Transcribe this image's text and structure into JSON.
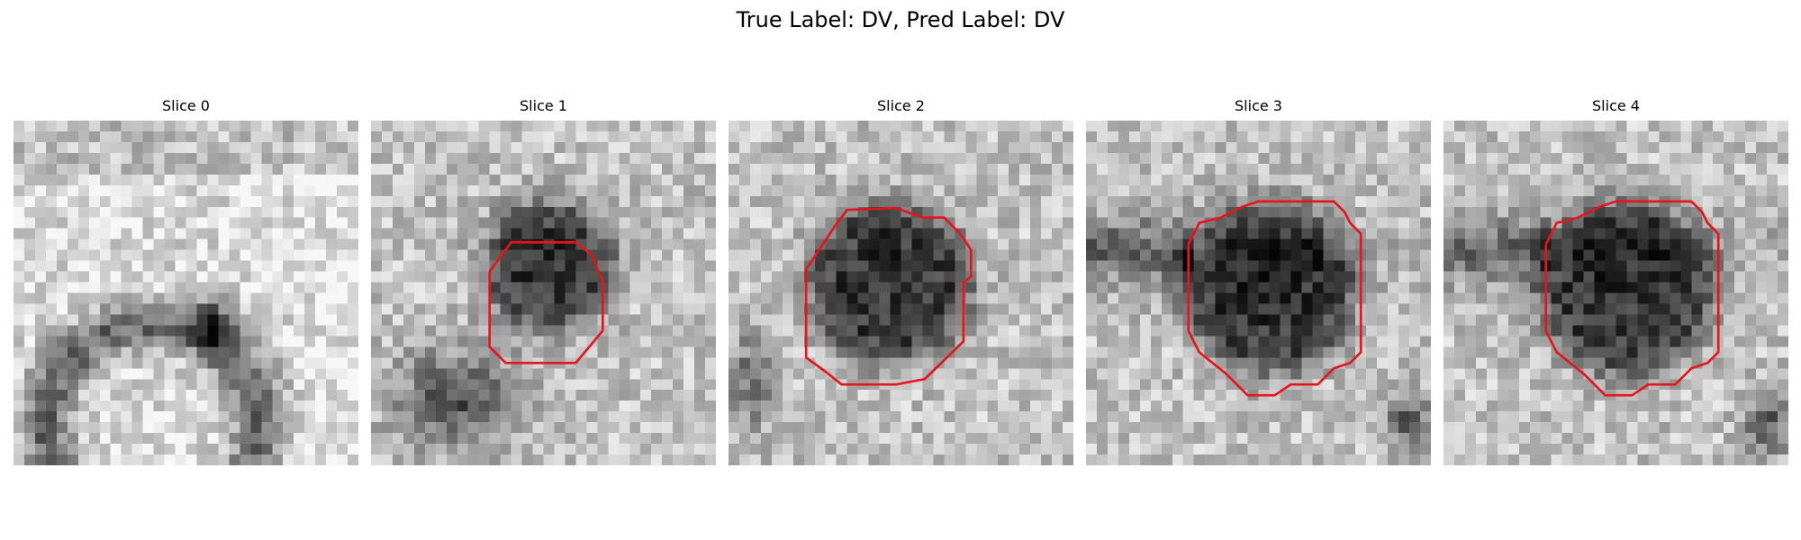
{
  "figure": {
    "title": "True Label: DV, Pred Label: DV"
  },
  "slices": [
    {
      "title": "Slice 0",
      "has_contour": false,
      "kind": "arch"
    },
    {
      "title": "Slice 1",
      "has_contour": true,
      "kind": "lesion-small"
    },
    {
      "title": "Slice 2",
      "has_contour": true,
      "kind": "lesion-mid"
    },
    {
      "title": "Slice 3",
      "has_contour": true,
      "kind": "lesion-large"
    },
    {
      "title": "Slice 4",
      "has_contour": true,
      "kind": "lesion-large"
    }
  ],
  "colors": {
    "contour": "#e8141b",
    "background": "#ffffff"
  }
}
